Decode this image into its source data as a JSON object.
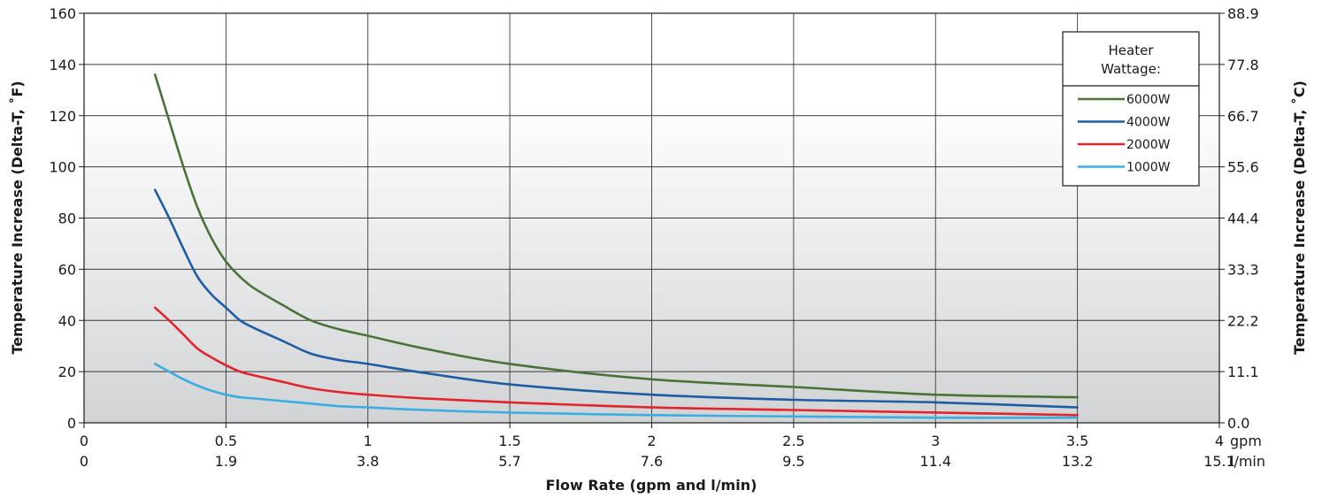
{
  "chart_data": {
    "type": "line",
    "xlabel": "Flow Rate (gpm and l/min)",
    "ylabel_left": "Temperature Increase (Delta-T, ˚F)",
    "ylabel_right": "Temperature Increase (Delta-T, ˚C)",
    "x_unit_primary": "gpm",
    "x_unit_secondary": "l/min",
    "xlim": [
      0,
      4
    ],
    "ylim": [
      0,
      160
    ],
    "x_ticks_gpm": [
      "0",
      "0.5",
      "1",
      "1.5",
      "2",
      "2.5",
      "3",
      "3.5",
      "4"
    ],
    "x_ticks_lmin": [
      "0",
      "1.9",
      "3.8",
      "5.7",
      "7.6",
      "9.5",
      "11.4",
      "13.2",
      "15.1"
    ],
    "y_ticks_left": [
      "0",
      "20",
      "40",
      "60",
      "80",
      "100",
      "120",
      "140",
      "160"
    ],
    "y_ticks_right": [
      "0.0",
      "11.1",
      "22.2",
      "33.3",
      "44.4",
      "55.6",
      "66.7",
      "77.8",
      "88.9"
    ],
    "grid": true,
    "legend": {
      "title_lines": [
        "Heater",
        "Wattage:"
      ],
      "placement": "top-right"
    },
    "series": [
      {
        "name": "6000W",
        "color": "#4a7337",
        "x": [
          0.25,
          0.3,
          0.35,
          0.4,
          0.45,
          0.5,
          0.55,
          0.6,
          0.7,
          0.8,
          0.9,
          1.0,
          1.2,
          1.5,
          2.0,
          2.5,
          3.0,
          3.5
        ],
        "y": [
          136,
          118,
          100,
          84,
          72,
          63,
          57,
          52.5,
          46,
          40,
          36.5,
          34,
          29,
          23,
          17,
          14,
          11,
          10
        ]
      },
      {
        "name": "4000W",
        "color": "#1e5ca3",
        "x": [
          0.25,
          0.3,
          0.35,
          0.4,
          0.45,
          0.5,
          0.55,
          0.6,
          0.7,
          0.8,
          0.9,
          1.0,
          1.2,
          1.5,
          2.0,
          2.5,
          3.0,
          3.5
        ],
        "y": [
          91,
          80,
          68,
          57,
          50,
          45,
          40,
          37,
          32,
          27,
          24.5,
          23,
          19.5,
          15,
          11,
          9,
          8,
          6
        ]
      },
      {
        "name": "2000W",
        "color": "#e2242c",
        "x": [
          0.25,
          0.3,
          0.35,
          0.4,
          0.45,
          0.5,
          0.55,
          0.6,
          0.7,
          0.8,
          0.9,
          1.0,
          1.2,
          1.5,
          2.0,
          2.5,
          3.0,
          3.5
        ],
        "y": [
          45,
          40,
          34.5,
          29,
          25.5,
          22.5,
          20,
          18.5,
          16,
          13.5,
          12,
          11,
          9.5,
          8,
          6,
          5,
          4,
          3
        ]
      },
      {
        "name": "1000W",
        "color": "#3aaee3",
        "x": [
          0.25,
          0.3,
          0.35,
          0.4,
          0.45,
          0.5,
          0.55,
          0.6,
          0.7,
          0.8,
          0.9,
          1.0,
          1.2,
          1.5,
          2.0,
          2.5,
          3.0,
          3.5
        ],
        "y": [
          23,
          20,
          17,
          14.5,
          12.5,
          11,
          10,
          9.5,
          8.5,
          7.5,
          6.5,
          6,
          5,
          4,
          3,
          2.5,
          2,
          2
        ]
      }
    ]
  }
}
